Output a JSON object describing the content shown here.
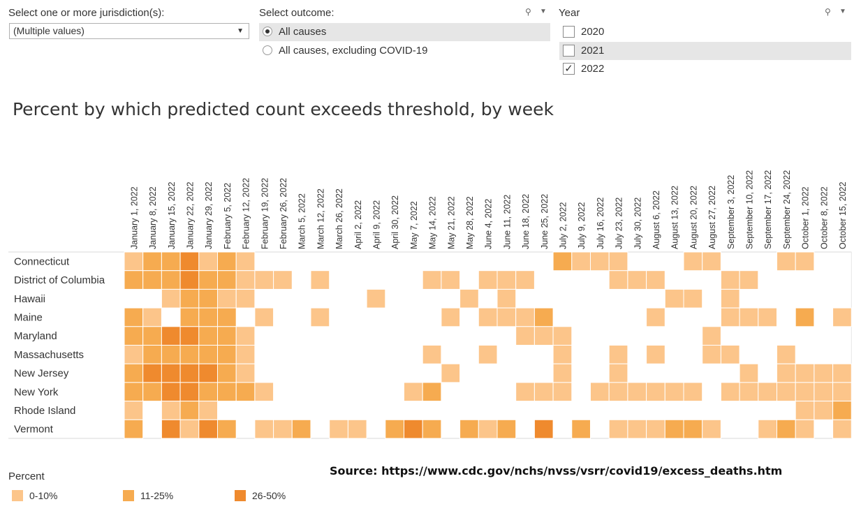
{
  "filters": {
    "jurisdiction_label": "Select one or more jurisdiction(s):",
    "jurisdiction_value": "(Multiple values)",
    "outcome_label": "Select outcome:",
    "outcome_options": [
      "All causes",
      "All causes, excluding COVID-19"
    ],
    "outcome_selected": "All causes",
    "year_label": "Year",
    "years": [
      "2020",
      "2021",
      "2022"
    ],
    "year_checked": [
      "2022"
    ],
    "year_highlighted": "2021"
  },
  "source_text": "Source: https://www.cdc.gov/nchs/nvss/vsrr/covid19/excess_deaths.htm",
  "legend": {
    "title": "Percent",
    "items": [
      {
        "label": "0-10%",
        "color": "#fcc58a"
      },
      {
        "label": "11-25%",
        "color": "#f6ab50"
      },
      {
        "label": "26-50%",
        "color": "#ef8a2e"
      }
    ]
  },
  "chart_data": {
    "type": "heatmap",
    "title": "Percent by which predicted count exceeds threshold, by week",
    "value_scale": "0 = none, 1 = 0-10%, 2 = 11-25%, 3 = 26-50%",
    "colors": {
      "0": "#ffffff",
      "1": "#fcc58a",
      "2": "#f6ab50",
      "3": "#ef8a2e"
    },
    "x": [
      "January 1, 2022",
      "January 8, 2022",
      "January 15, 2022",
      "January 22, 2022",
      "January 29, 2022",
      "February 5, 2022",
      "February 12, 2022",
      "February 19, 2022",
      "February 26, 2022",
      "March 5, 2022",
      "March 12, 2022",
      "March 26, 2022",
      "April 2, 2022",
      "April 9, 2022",
      "April 30, 2022",
      "May 7, 2022",
      "May 14, 2022",
      "May 21, 2022",
      "May 28, 2022",
      "June 4, 2022",
      "June 11, 2022",
      "June 18, 2022",
      "June 25, 2022",
      "July 2, 2022",
      "July 9, 2022",
      "July 16, 2022",
      "July 23, 2022",
      "July 30, 2022",
      "August 6, 2022",
      "August 13, 2022",
      "August 20, 2022",
      "August 27, 2022",
      "September 3, 2022",
      "September 10, 2022",
      "September 17, 2022",
      "September 24, 2022",
      "October 1, 2022",
      "October 8, 2022",
      "October 15, 2022"
    ],
    "y": [
      "Connecticut",
      "District of Columbia",
      "Hawaii",
      "Maine",
      "Maryland",
      "Massachusetts",
      "New Jersey",
      "New York",
      "Rhode Island",
      "Vermont"
    ],
    "values": [
      [
        1,
        2,
        2,
        3,
        1,
        2,
        1,
        0,
        0,
        0,
        0,
        0,
        0,
        0,
        0,
        0,
        0,
        0,
        0,
        0,
        0,
        0,
        0,
        2,
        1,
        1,
        1,
        0,
        0,
        0,
        1,
        1,
        0,
        0,
        0,
        1,
        1,
        0,
        0
      ],
      [
        2,
        2,
        2,
        3,
        2,
        2,
        1,
        1,
        1,
        0,
        1,
        0,
        0,
        0,
        0,
        0,
        1,
        1,
        0,
        1,
        1,
        1,
        0,
        0,
        0,
        0,
        1,
        1,
        1,
        0,
        0,
        0,
        1,
        1,
        0,
        0,
        0,
        0,
        0
      ],
      [
        0,
        0,
        1,
        2,
        2,
        1,
        1,
        0,
        0,
        0,
        0,
        0,
        0,
        1,
        0,
        0,
        0,
        0,
        1,
        0,
        1,
        0,
        0,
        0,
        0,
        0,
        0,
        0,
        0,
        1,
        1,
        0,
        1,
        0,
        0,
        0,
        0,
        0,
        0
      ],
      [
        2,
        1,
        0,
        2,
        2,
        2,
        0,
        1,
        0,
        0,
        1,
        0,
        0,
        0,
        0,
        0,
        0,
        1,
        0,
        1,
        1,
        1,
        2,
        0,
        0,
        0,
        0,
        0,
        1,
        0,
        0,
        0,
        1,
        1,
        1,
        0,
        2,
        0,
        1
      ],
      [
        2,
        2,
        3,
        3,
        2,
        2,
        1,
        0,
        0,
        0,
        0,
        0,
        0,
        0,
        0,
        0,
        0,
        0,
        0,
        0,
        0,
        1,
        1,
        1,
        0,
        0,
        0,
        0,
        0,
        0,
        0,
        1,
        0,
        0,
        0,
        0,
        0,
        0,
        0
      ],
      [
        1,
        2,
        2,
        2,
        2,
        2,
        1,
        0,
        0,
        0,
        0,
        0,
        0,
        0,
        0,
        0,
        1,
        0,
        0,
        1,
        0,
        0,
        0,
        1,
        0,
        0,
        1,
        0,
        1,
        0,
        0,
        1,
        1,
        0,
        0,
        1,
        0,
        0,
        0
      ],
      [
        2,
        3,
        3,
        3,
        3,
        2,
        1,
        0,
        0,
        0,
        0,
        0,
        0,
        0,
        0,
        0,
        0,
        1,
        0,
        0,
        0,
        0,
        0,
        1,
        0,
        0,
        1,
        0,
        0,
        0,
        0,
        0,
        0,
        1,
        0,
        1,
        1,
        1,
        1
      ],
      [
        2,
        2,
        3,
        3,
        2,
        2,
        2,
        1,
        0,
        0,
        0,
        0,
        0,
        0,
        0,
        1,
        2,
        0,
        0,
        0,
        0,
        1,
        1,
        1,
        0,
        1,
        1,
        1,
        1,
        1,
        1,
        0,
        1,
        1,
        1,
        1,
        1,
        1,
        1
      ],
      [
        1,
        0,
        1,
        2,
        1,
        0,
        0,
        0,
        0,
        0,
        0,
        0,
        0,
        0,
        0,
        0,
        0,
        0,
        0,
        0,
        0,
        0,
        0,
        0,
        0,
        0,
        0,
        0,
        0,
        0,
        0,
        0,
        0,
        0,
        0,
        0,
        1,
        1,
        2
      ],
      [
        2,
        0,
        3,
        1,
        3,
        2,
        0,
        1,
        1,
        2,
        0,
        1,
        1,
        0,
        2,
        3,
        2,
        0,
        2,
        1,
        2,
        0,
        3,
        0,
        2,
        0,
        1,
        1,
        1,
        2,
        2,
        1,
        0,
        0,
        1,
        2,
        1,
        0,
        1
      ]
    ]
  }
}
